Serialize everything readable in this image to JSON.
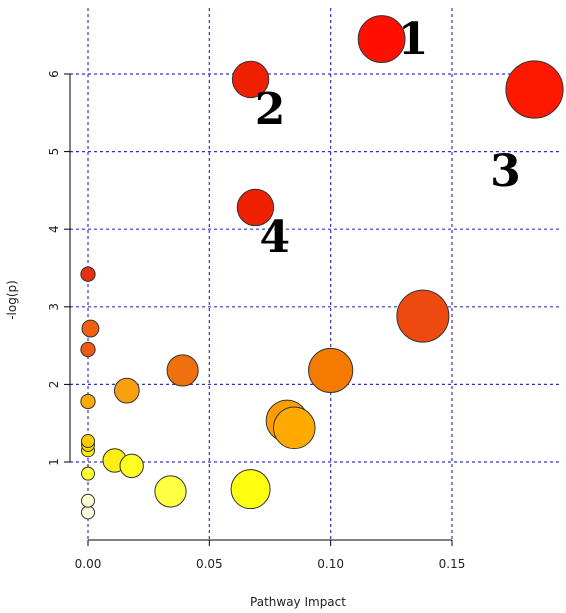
{
  "chart_data": {
    "type": "scatter",
    "xlabel": "Pathway Impact",
    "ylabel": "-log(p)",
    "xlim": [
      -0.008,
      0.19
    ],
    "ylim": [
      0.15,
      7.35
    ],
    "x_ticks": [
      0,
      0.05,
      0.1,
      0.15
    ],
    "x_tick_labels": [
      "0.00",
      "0.05",
      "0.10",
      "0.15"
    ],
    "y_ticks": [
      1,
      2,
      3,
      4,
      5,
      6
    ],
    "y_tick_labels": [
      "1",
      "2",
      "3",
      "4",
      "5",
      "6"
    ],
    "grid": true,
    "grid_color": "#3333cc",
    "points": [
      {
        "x": 0.0,
        "y": 0.35,
        "size": 0.5,
        "color": "#fdfbe0"
      },
      {
        "x": 0.0,
        "y": 0.5,
        "size": 0.5,
        "color": "#fdfbd2"
      },
      {
        "x": 0.0,
        "y": 0.85,
        "size": 0.5,
        "color": "#ffff33"
      },
      {
        "x": 0.0,
        "y": 1.15,
        "size": 0.5,
        "color": "#ffee00"
      },
      {
        "x": 0.0,
        "y": 1.22,
        "size": 0.5,
        "color": "#ffdd00"
      },
      {
        "x": 0.0,
        "y": 1.27,
        "size": 0.5,
        "color": "#ffcc00"
      },
      {
        "x": 0.0,
        "y": 1.78,
        "size": 0.55,
        "color": "#ffaa00"
      },
      {
        "x": 0.0,
        "y": 2.45,
        "size": 0.55,
        "color": "#f05a10"
      },
      {
        "x": 0.001,
        "y": 2.72,
        "size": 0.65,
        "color": "#f06010"
      },
      {
        "x": 0.0,
        "y": 3.42,
        "size": 0.55,
        "color": "#e83010"
      },
      {
        "x": 0.011,
        "y": 1.02,
        "size": 0.9,
        "color": "#ffee11"
      },
      {
        "x": 0.018,
        "y": 0.95,
        "size": 0.9,
        "color": "#ffff22"
      },
      {
        "x": 0.016,
        "y": 1.92,
        "size": 0.95,
        "color": "#f8a010"
      },
      {
        "x": 0.034,
        "y": 0.62,
        "size": 1.2,
        "color": "#ffff44"
      },
      {
        "x": 0.039,
        "y": 2.18,
        "size": 1.2,
        "color": "#f07010"
      },
      {
        "x": 0.067,
        "y": 0.65,
        "size": 1.5,
        "color": "#ffff10"
      },
      {
        "x": 0.082,
        "y": 1.53,
        "size": 1.6,
        "color": "#ff9c00"
      },
      {
        "x": 0.085,
        "y": 1.44,
        "size": 1.6,
        "color": "#ffaa00"
      },
      {
        "x": 0.1,
        "y": 2.18,
        "size": 1.7,
        "color": "#f47a00"
      },
      {
        "x": 0.138,
        "y": 2.88,
        "size": 2.0,
        "color": "#ee4a10"
      },
      {
        "x": 0.067,
        "y": 5.93,
        "size": 1.4,
        "color": "#ee2000"
      },
      {
        "x": 0.069,
        "y": 4.28,
        "size": 1.4,
        "color": "#ee2000"
      },
      {
        "x": 0.121,
        "y": 6.45,
        "size": 1.8,
        "color": "#ff1000"
      },
      {
        "x": 0.184,
        "y": 5.8,
        "size": 2.2,
        "color": "#ff1800"
      }
    ],
    "annotations": [
      {
        "text": "1",
        "x": 0.134,
        "y": 6.45
      },
      {
        "text": "2",
        "x": 0.075,
        "y": 5.55
      },
      {
        "text": "3",
        "x": 0.172,
        "y": 4.75
      },
      {
        "text": "4",
        "x": 0.077,
        "y": 3.9
      }
    ]
  }
}
